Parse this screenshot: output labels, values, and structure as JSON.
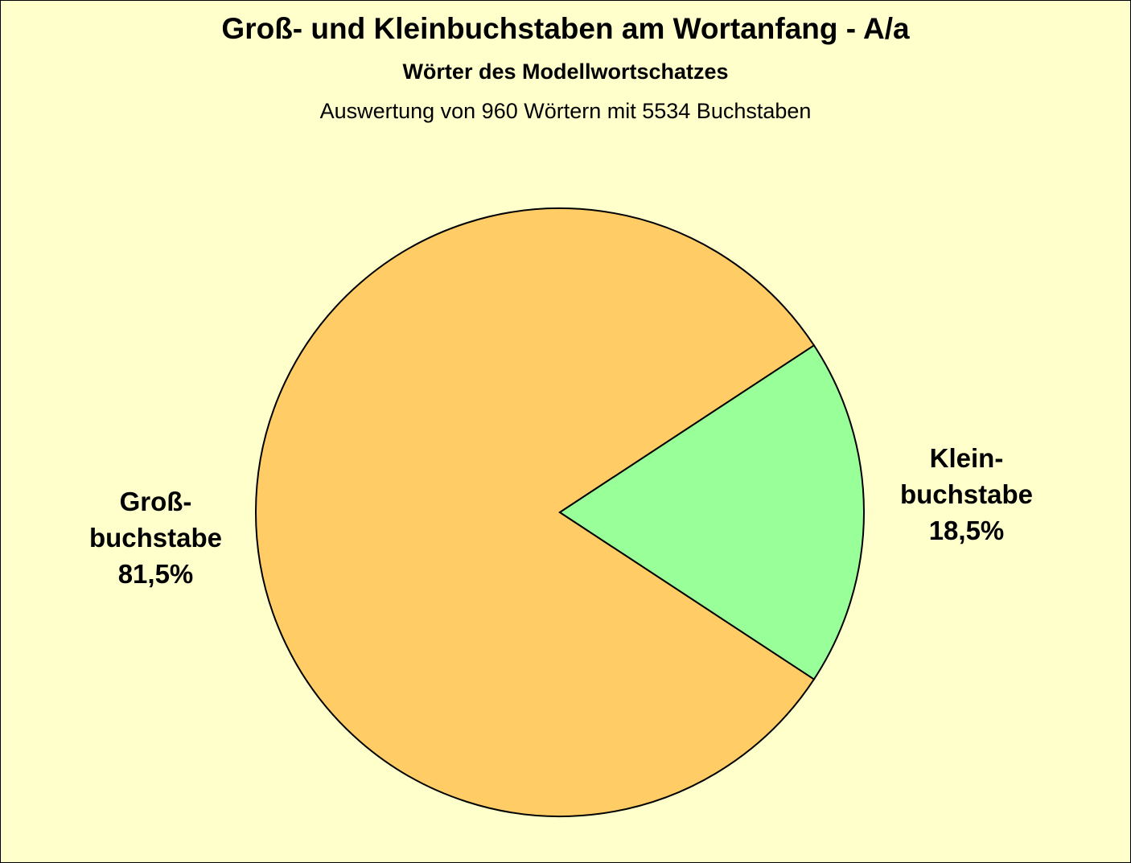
{
  "chart_data": {
    "type": "pie",
    "title": "Groß- und  Kleinbuchstaben am Wortanfang - A/a",
    "subtitle": "Wörter des Modellwortschatzes",
    "note": "Auswertung von 960 Wörtern mit 5534 Buchstaben",
    "slices": [
      {
        "label_lines": [
          "Groß-",
          "buchstabe"
        ],
        "value": 81.5,
        "value_label": "81,5%",
        "color": "#FFCC66"
      },
      {
        "label_lines": [
          "Klein-",
          "buchstabe"
        ],
        "value": 18.5,
        "value_label": "18,5%",
        "color": "#99FF99"
      }
    ],
    "background_color": "#FFFFCC",
    "border_color": "#000000"
  }
}
